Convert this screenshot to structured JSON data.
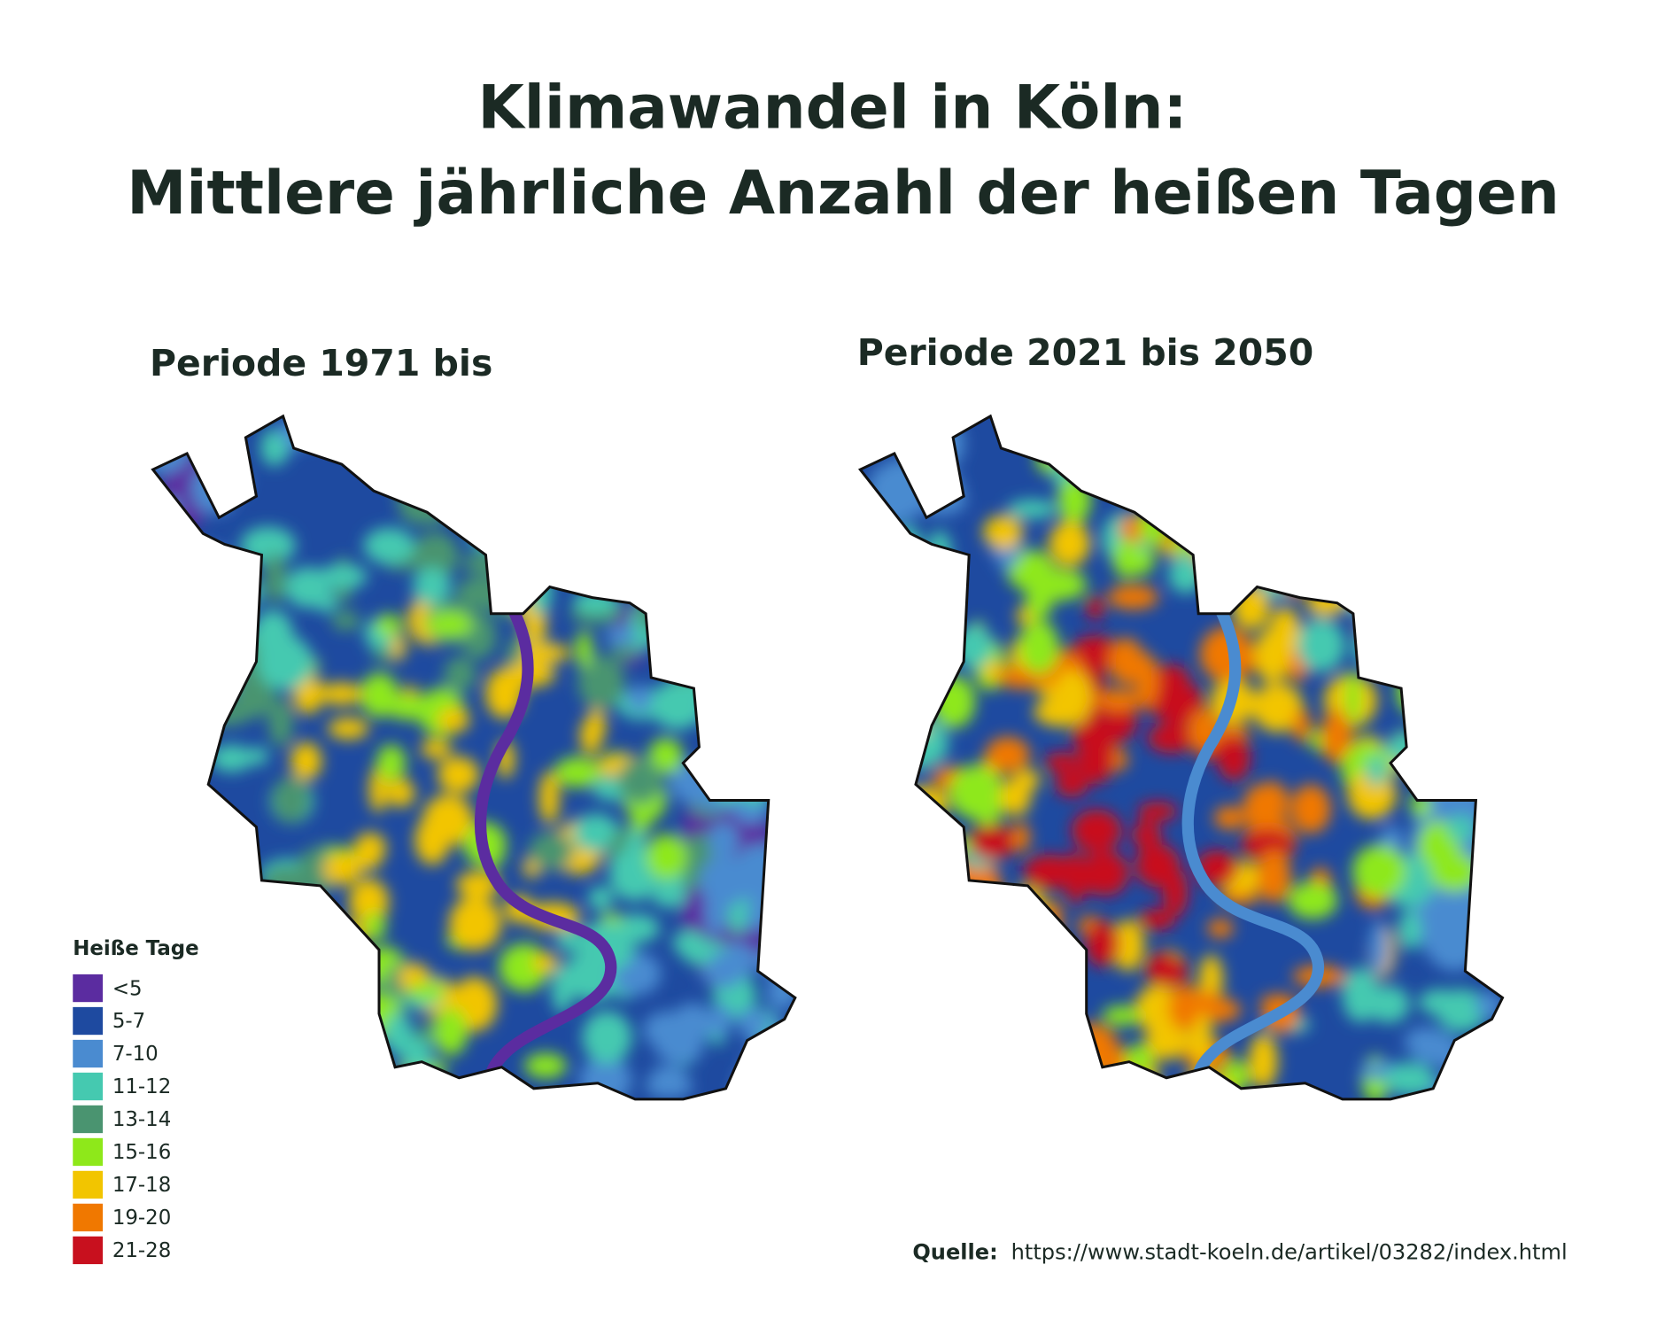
{
  "title": {
    "lines": [
      "Klimawandel in Köln:",
      "Mittlere jährliche Anzahl der heißen Tagen"
    ]
  },
  "maps": [
    {
      "title": "Periode 1971 bis"
    },
    {
      "title": "Periode 2021 bis 2050"
    }
  ],
  "legend": {
    "title": "Heiße Tage",
    "items": [
      {
        "label": "<5",
        "color": "#5b2ca0"
      },
      {
        "label": "5-7",
        "color": "#1e4aa0"
      },
      {
        "label": "7-10",
        "color": "#4a8bd0"
      },
      {
        "label": "11-12",
        "color": "#45c9b0"
      },
      {
        "label": "13-14",
        "color": "#4a9470"
      },
      {
        "label": "15-16",
        "color": "#8ee81a"
      },
      {
        "label": "17-18",
        "color": "#f2c500"
      },
      {
        "label": "19-20",
        "color": "#f07800"
      },
      {
        "label": "21-28",
        "color": "#c8101e"
      }
    ]
  },
  "source": {
    "label": "Quelle:",
    "url": "https://www.stadt-koeln.de/artikel/03282/index.html"
  }
}
